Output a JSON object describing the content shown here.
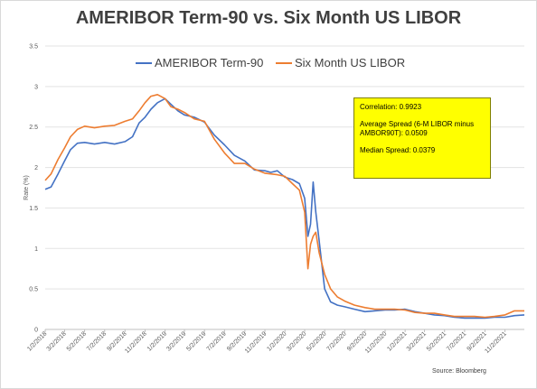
{
  "chart_data": {
    "type": "line",
    "title": "AMERIBOR Term-90 vs. Six Month US LIBOR",
    "ylabel": "Rate (%)",
    "xlabel": "",
    "ylim": [
      0,
      3.5
    ],
    "yticks": [
      "0",
      "0.5",
      "1",
      "1.5",
      "2",
      "2.5",
      "3",
      "3.5"
    ],
    "xticks": [
      "1/2/2018",
      "3/2/2018",
      "5/2/2018",
      "7/2/2018",
      "9/2/2018",
      "11/2/2018",
      "1/2/2019",
      "3/2/2019",
      "5/2/2019",
      "7/2/2019",
      "9/2/2019",
      "11/2/2019",
      "1/2/2020",
      "3/2/2020",
      "5/2/2020",
      "7/2/2020",
      "9/2/2020",
      "11/2/2020",
      "1/2/2021",
      "3/2/2021",
      "5/2/2021",
      "7/2/2021",
      "9/2/2021",
      "11/2/2021"
    ],
    "grid": true,
    "legend": "top",
    "colors": {
      "ameribor": "#4472c4",
      "libor": "#ed7d31"
    },
    "series": [
      {
        "name": "AMERIBOR Term-90",
        "points": [
          [
            "1/2/2018",
            1.73
          ],
          [
            "1/20/2018",
            1.76
          ],
          [
            "2/10/2018",
            1.92
          ],
          [
            "3/2/2018",
            2.08
          ],
          [
            "3/20/2018",
            2.22
          ],
          [
            "4/10/2018",
            2.3
          ],
          [
            "5/2/2018",
            2.31
          ],
          [
            "6/1/2018",
            2.29
          ],
          [
            "7/2/2018",
            2.31
          ],
          [
            "8/1/2018",
            2.29
          ],
          [
            "9/2/2018",
            2.32
          ],
          [
            "9/25/2018",
            2.38
          ],
          [
            "10/15/2018",
            2.55
          ],
          [
            "11/2/2018",
            2.62
          ],
          [
            "11/20/2018",
            2.72
          ],
          [
            "12/10/2018",
            2.8
          ],
          [
            "1/2/2019",
            2.85
          ],
          [
            "1/20/2019",
            2.78
          ],
          [
            "2/10/2019",
            2.7
          ],
          [
            "3/2/2019",
            2.65
          ],
          [
            "4/1/2019",
            2.62
          ],
          [
            "5/2/2019",
            2.56
          ],
          [
            "6/1/2019",
            2.4
          ],
          [
            "7/2/2019",
            2.28
          ],
          [
            "8/1/2019",
            2.15
          ],
          [
            "9/2/2019",
            2.08
          ],
          [
            "10/1/2019",
            1.97
          ],
          [
            "11/2/2019",
            1.96
          ],
          [
            "11/20/2019",
            1.94
          ],
          [
            "12/10/2019",
            1.96
          ],
          [
            "1/2/2020",
            1.88
          ],
          [
            "1/25/2020",
            1.85
          ],
          [
            "2/15/2020",
            1.8
          ],
          [
            "3/2/2020",
            1.62
          ],
          [
            "3/12/2020",
            1.15
          ],
          [
            "3/20/2020",
            1.3
          ],
          [
            "3/28/2020",
            1.82
          ],
          [
            "4/5/2020",
            1.45
          ],
          [
            "4/15/2020",
            1.1
          ],
          [
            "5/2/2020",
            0.5
          ],
          [
            "5/20/2020",
            0.34
          ],
          [
            "6/10/2020",
            0.3
          ],
          [
            "7/2/2020",
            0.28
          ],
          [
            "8/1/2020",
            0.25
          ],
          [
            "9/2/2020",
            0.22
          ],
          [
            "10/1/2020",
            0.23
          ],
          [
            "11/2/2020",
            0.24
          ],
          [
            "12/1/2020",
            0.24
          ],
          [
            "1/2/2021",
            0.25
          ],
          [
            "2/1/2021",
            0.22
          ],
          [
            "3/2/2021",
            0.2
          ],
          [
            "4/1/2021",
            0.18
          ],
          [
            "5/2/2021",
            0.17
          ],
          [
            "6/1/2021",
            0.15
          ],
          [
            "7/2/2021",
            0.14
          ],
          [
            "8/1/2021",
            0.14
          ],
          [
            "9/2/2021",
            0.14
          ],
          [
            "10/1/2021",
            0.15
          ],
          [
            "11/2/2021",
            0.15
          ],
          [
            "12/1/2021",
            0.17
          ],
          [
            "12/31/2021",
            0.18
          ]
        ]
      },
      {
        "name": "Six Month US LIBOR",
        "points": [
          [
            "1/2/2018",
            1.84
          ],
          [
            "1/20/2018",
            1.92
          ],
          [
            "2/10/2018",
            2.1
          ],
          [
            "3/2/2018",
            2.24
          ],
          [
            "3/20/2018",
            2.38
          ],
          [
            "4/10/2018",
            2.47
          ],
          [
            "5/2/2018",
            2.51
          ],
          [
            "6/1/2018",
            2.49
          ],
          [
            "7/2/2018",
            2.51
          ],
          [
            "8/1/2018",
            2.52
          ],
          [
            "9/2/2018",
            2.57
          ],
          [
            "9/25/2018",
            2.6
          ],
          [
            "10/15/2018",
            2.7
          ],
          [
            "11/2/2018",
            2.8
          ],
          [
            "11/20/2018",
            2.88
          ],
          [
            "12/10/2018",
            2.9
          ],
          [
            "1/2/2019",
            2.85
          ],
          [
            "1/20/2019",
            2.75
          ],
          [
            "2/10/2019",
            2.72
          ],
          [
            "3/2/2019",
            2.68
          ],
          [
            "4/1/2019",
            2.6
          ],
          [
            "5/2/2019",
            2.57
          ],
          [
            "6/1/2019",
            2.35
          ],
          [
            "7/2/2019",
            2.18
          ],
          [
            "8/1/2019",
            2.05
          ],
          [
            "9/2/2019",
            2.05
          ],
          [
            "10/1/2019",
            1.98
          ],
          [
            "11/2/2019",
            1.93
          ],
          [
            "11/20/2019",
            1.92
          ],
          [
            "12/10/2019",
            1.91
          ],
          [
            "1/2/2020",
            1.89
          ],
          [
            "1/25/2020",
            1.8
          ],
          [
            "2/15/2020",
            1.72
          ],
          [
            "3/2/2020",
            1.45
          ],
          [
            "3/12/2020",
            0.75
          ],
          [
            "3/20/2020",
            1.05
          ],
          [
            "3/28/2020",
            1.15
          ],
          [
            "4/5/2020",
            1.2
          ],
          [
            "4/15/2020",
            0.95
          ],
          [
            "5/2/2020",
            0.68
          ],
          [
            "5/20/2020",
            0.5
          ],
          [
            "6/10/2020",
            0.4
          ],
          [
            "7/2/2020",
            0.35
          ],
          [
            "8/1/2020",
            0.3
          ],
          [
            "9/2/2020",
            0.27
          ],
          [
            "10/1/2020",
            0.25
          ],
          [
            "11/2/2020",
            0.25
          ],
          [
            "12/1/2020",
            0.25
          ],
          [
            "1/2/2021",
            0.24
          ],
          [
            "2/1/2021",
            0.21
          ],
          [
            "3/2/2021",
            0.2
          ],
          [
            "4/1/2021",
            0.2
          ],
          [
            "5/2/2021",
            0.18
          ],
          [
            "6/1/2021",
            0.16
          ],
          [
            "7/2/2021",
            0.16
          ],
          [
            "8/1/2021",
            0.16
          ],
          [
            "9/2/2021",
            0.15
          ],
          [
            "10/1/2021",
            0.16
          ],
          [
            "11/2/2021",
            0.18
          ],
          [
            "12/1/2021",
            0.23
          ],
          [
            "12/31/2021",
            0.23
          ]
        ]
      }
    ]
  },
  "stats_box": {
    "correlation": "Correlation: 0.9923",
    "average_spread": "Average Spread (6-M LIBOR minus AMBOR90T): 0.0509",
    "median_spread": "Median Spread: 0.0379"
  },
  "source": "Source: Bloomberg"
}
